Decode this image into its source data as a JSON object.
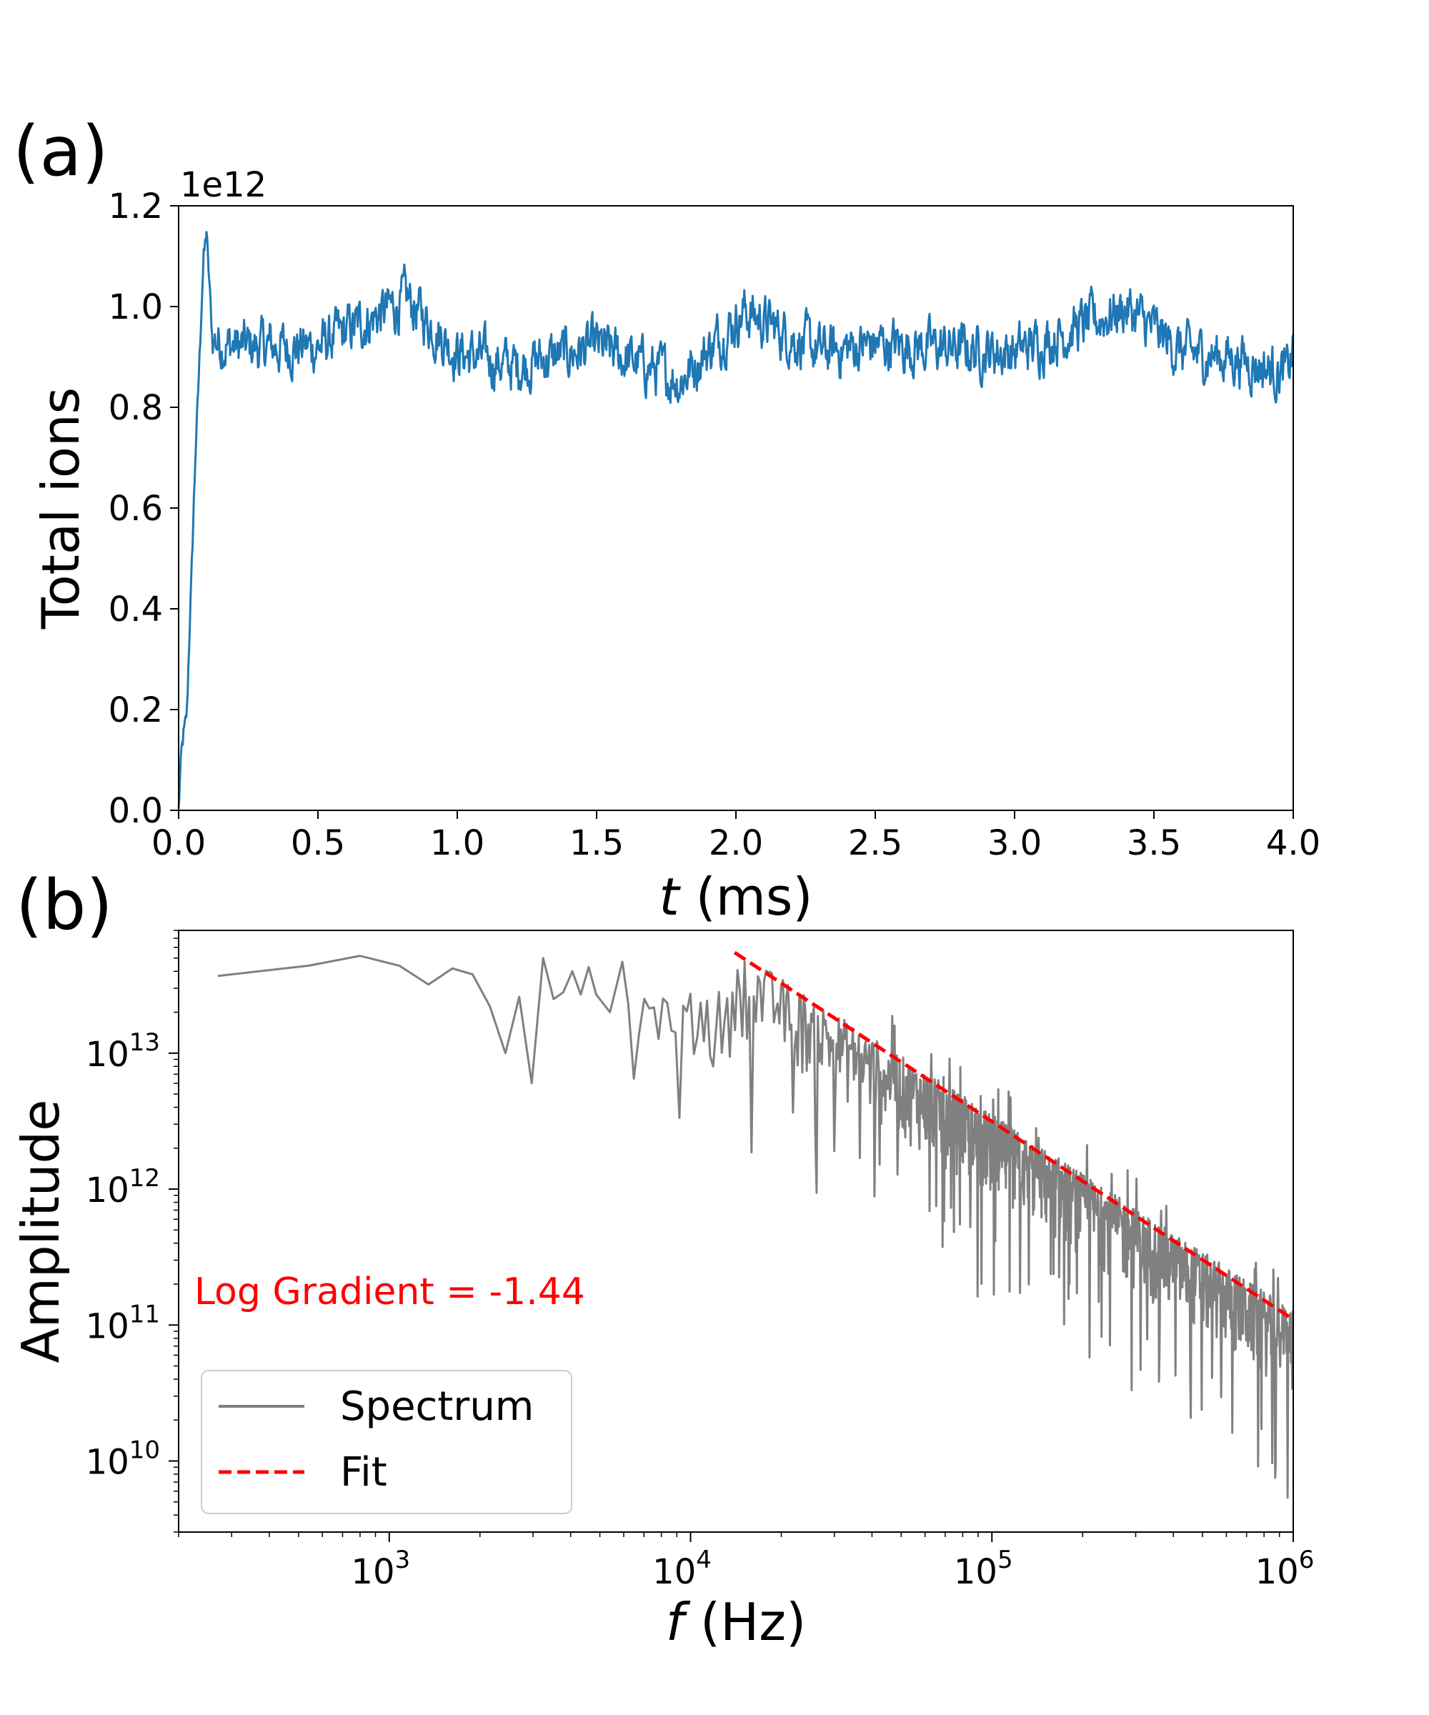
{
  "panel_a_label": "(a)",
  "panel_b_label": "(b)",
  "chart_data": [
    {
      "type": "line",
      "panel": "(a)",
      "xlabel_italic": "t",
      "xlabel_unit": " (ms)",
      "ylabel": "Total ions",
      "y_offset_text": "1e12",
      "xlim": [
        0.0,
        4.0
      ],
      "ylim": [
        0.0,
        1.2
      ],
      "xticks": [
        "0.0",
        "0.5",
        "1.0",
        "1.5",
        "2.0",
        "2.5",
        "3.0",
        "3.5",
        "4.0"
      ],
      "yticks": [
        "0.0",
        "0.2",
        "0.4",
        "0.6",
        "0.8",
        "1.0",
        "1.2"
      ],
      "grid": false,
      "series": [
        {
          "color": "#1f77b4",
          "description_points": [
            [
              0.0,
              0.0
            ],
            [
              0.01,
              0.12
            ],
            [
              0.03,
              0.2
            ],
            [
              0.06,
              0.7
            ],
            [
              0.09,
              1.1
            ],
            [
              0.1,
              1.15
            ],
            [
              0.12,
              0.95
            ],
            [
              0.2,
              0.92
            ],
            [
              0.5,
              0.92
            ],
            [
              0.82,
              1.09
            ],
            [
              1.0,
              0.9
            ],
            [
              1.2,
              0.85
            ],
            [
              1.5,
              0.92
            ],
            [
              1.8,
              0.8
            ],
            [
              2.03,
              1.05
            ],
            [
              2.3,
              0.9
            ],
            [
              2.5,
              0.93
            ],
            [
              3.0,
              0.9
            ],
            [
              3.4,
              1.06
            ],
            [
              3.6,
              0.9
            ],
            [
              3.8,
              0.88
            ],
            [
              3.98,
              0.82
            ],
            [
              4.0,
              0.92
            ]
          ],
          "mean_steady": 0.92,
          "noise_amplitude": 0.05
        }
      ]
    },
    {
      "type": "line",
      "panel": "(b)",
      "xscale": "log",
      "yscale": "log",
      "xlabel_italic": "f",
      "xlabel_unit": " (Hz)",
      "ylabel": "Amplitude",
      "xlim": [
        200,
        1000000
      ],
      "ylim": [
        3000000000,
        80000000000000
      ],
      "xtick_bases": [
        "10",
        "10",
        "10",
        "10"
      ],
      "xtick_exps": [
        "3",
        "4",
        "5",
        "6"
      ],
      "ytick_bases": [
        "10",
        "10",
        "10",
        "10"
      ],
      "ytick_exps": [
        "10",
        "11",
        "12",
        "13"
      ],
      "annotation": "Log Gradient = -1.44",
      "annotation_color": "#ff0000",
      "legend_placement": "lower-left",
      "series": [
        {
          "name": "Spectrum",
          "color": "#808080",
          "low_freq_points": [
            [
              270,
              37000000000000
            ],
            [
              540,
              44000000000000
            ],
            [
              800,
              52000000000000
            ],
            [
              1080,
              44000000000000
            ],
            [
              1350,
              32000000000000
            ],
            [
              1620,
              42000000000000
            ],
            [
              1890,
              38000000000000
            ],
            [
              2160,
              22000000000000
            ],
            [
              2430,
              10000000000000
            ],
            [
              2700,
              26000000000000
            ],
            [
              2970,
              6000000000000
            ],
            [
              3240,
              50000000000000
            ],
            [
              3510,
              25000000000000
            ],
            [
              3780,
              28000000000000
            ],
            [
              4050,
              40000000000000
            ],
            [
              4320,
              27000000000000
            ],
            [
              4590,
              43000000000000
            ],
            [
              4860,
              27000000000000
            ],
            [
              5400,
              20000000000000
            ],
            [
              5940,
              47000000000000
            ],
            [
              6210,
              23000000000000
            ],
            [
              6480,
              6500000000000
            ]
          ],
          "trend_slope": -1.44
        },
        {
          "name": "Fit",
          "color": "#ff0000",
          "style": "dashed",
          "x": [
            14000,
            1000000
          ],
          "y": [
            55000000000000,
            110000000000
          ]
        }
      ]
    }
  ]
}
